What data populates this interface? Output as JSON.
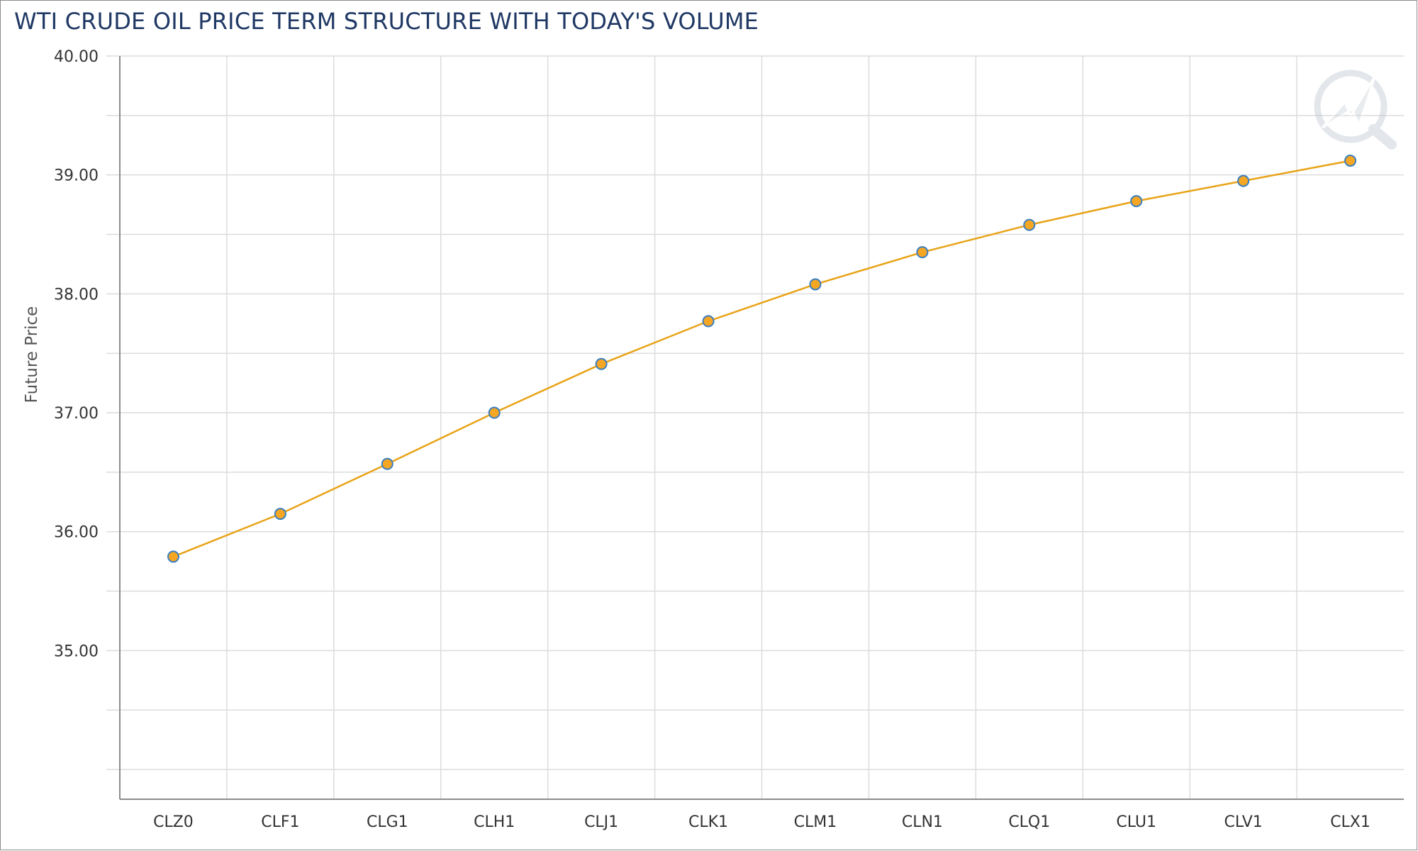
{
  "chart_data": {
    "type": "line",
    "title": "WTI CRUDE OIL PRICE TERM STRUCTURE WITH TODAY'S VOLUME",
    "ylabel": "Future Price",
    "xlabel": "",
    "categories": [
      "CLZ0",
      "CLF1",
      "CLG1",
      "CLH1",
      "CLJ1",
      "CLK1",
      "CLM1",
      "CLN1",
      "CLQ1",
      "CLU1",
      "CLV1",
      "CLX1"
    ],
    "series": [
      {
        "values": [
          35.79,
          36.15,
          36.57,
          37.0,
          37.41,
          37.77,
          38.08,
          38.35,
          38.58,
          38.78,
          38.95,
          39.12
        ]
      }
    ],
    "ylim": [
      33.75,
      40.0
    ],
    "yticks": [
      "40.00",
      "39.00",
      "38.00",
      "37.00",
      "36.00",
      "35.00"
    ],
    "grid": true,
    "colors": {
      "line": "#e8a317",
      "marker_fill": "#f5a623",
      "marker_stroke": "#3a7fc1",
      "title": "#1f3864"
    },
    "watermark_icon": "lightning-magnifier-logo"
  }
}
